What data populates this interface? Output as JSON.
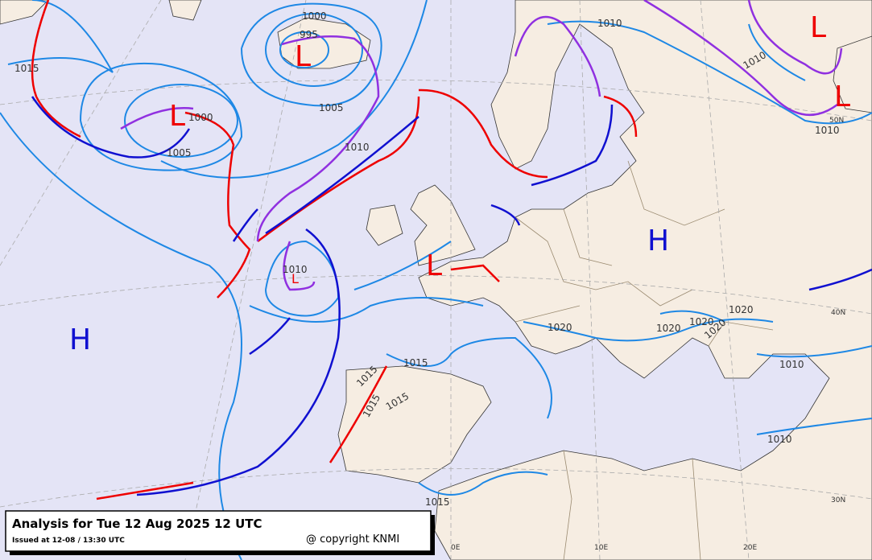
{
  "isobar_labels": [
    1000,
    995,
    1015,
    1000,
    1005,
    1005,
    1010,
    1010,
    1010,
    1010,
    1010,
    1020,
    1020,
    1020,
    1020,
    1020,
    1010,
    1015,
    1015,
    1015,
    1015,
    1015,
    1010
  ],
  "pressure_centers": [
    "L",
    "L",
    "L",
    "L",
    "L",
    "L",
    "H",
    "H"
  ],
  "grid_labels": [
    "50N",
    "40N",
    "30N",
    "0E",
    "10E",
    "20E"
  ],
  "footer": {
    "title": "Analysis for Tue 12 Aug 2025 12 UTC",
    "issued": "Issued at 12-08 / 13:30 UTC",
    "copyright": "@ copyright KNMI"
  }
}
